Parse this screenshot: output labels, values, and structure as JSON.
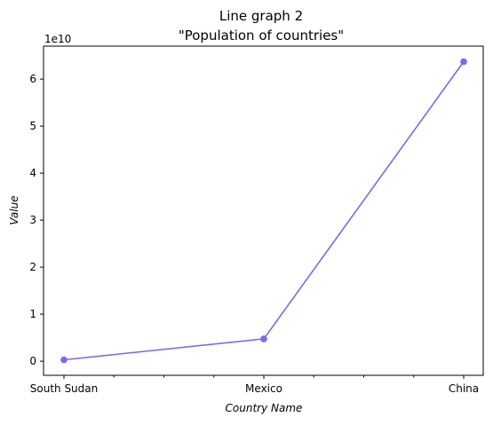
{
  "chart_data": {
    "type": "line",
    "title": "Line graph 2",
    "subtitle": "\"Population of countries\"",
    "xlabel": "Country Name",
    "ylabel": "Value",
    "y_offset_label": "1e10",
    "categories": [
      "South Sudan",
      "Mexico",
      "China"
    ],
    "series": [
      {
        "values": [
          300000000,
          4750000000,
          63700000000
        ],
        "color": "#7b68ee"
      }
    ],
    "ylim": [
      -3000000000,
      67000000000
    ],
    "y_ticks": [
      0,
      10000000000,
      20000000000,
      30000000000,
      40000000000,
      50000000000,
      60000000000
    ],
    "y_tick_labels": [
      "0",
      "1",
      "2",
      "3",
      "4",
      "5",
      "6"
    ],
    "minor_x_ticks_between": 3,
    "grid": false,
    "legend": "none"
  }
}
